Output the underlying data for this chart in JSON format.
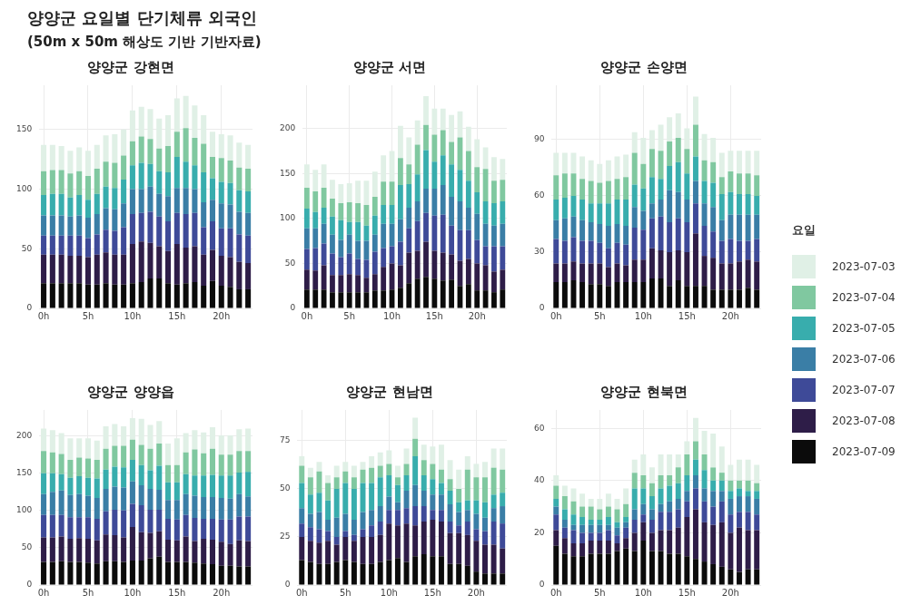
{
  "chart_data": [
    {
      "type": "bar",
      "stacked": true,
      "title": "양양군 강현면",
      "legend": "right",
      "legend_title": "요일",
      "annotations": [
        "양양군 요일별 단기체류 외국인",
        "(50m x 50m 해상도 기반 기반자료)"
      ],
      "categories": [
        "0h",
        null,
        null,
        null,
        null,
        "5h",
        null,
        null,
        null,
        null,
        "10h",
        null,
        null,
        null,
        null,
        "15h",
        null,
        null,
        null,
        null,
        "20h",
        null,
        null,
        null
      ],
      "ylim": [
        0,
        187
      ],
      "yticks": [
        0,
        50,
        100,
        150
      ],
      "grid": true,
      "series": [
        {
          "name": "2023-07-09",
          "color": "#0b0b0b",
          "values": [
            21,
            21,
            21,
            21,
            21,
            20,
            20,
            21,
            20,
            20,
            21,
            22,
            25,
            25,
            21,
            20,
            21,
            22,
            19,
            23,
            19,
            18,
            16,
            16
          ]
        },
        {
          "name": "2023-07-08",
          "color": "#2e1d48",
          "values": [
            24,
            24,
            24,
            23,
            23,
            23,
            25,
            26,
            25,
            25,
            33,
            34,
            30,
            27,
            27,
            34,
            30,
            30,
            26,
            26,
            25,
            25,
            23,
            22
          ]
        },
        {
          "name": "2023-07-07",
          "color": "#3e4a98",
          "values": [
            16,
            16,
            16,
            17,
            17,
            16,
            17,
            19,
            20,
            23,
            25,
            24,
            26,
            25,
            25,
            26,
            28,
            28,
            23,
            24,
            23,
            24,
            23,
            23
          ]
        },
        {
          "name": "2023-07-06",
          "color": "#3a7ea6",
          "values": [
            17,
            17,
            17,
            16,
            17,
            17,
            17,
            18,
            18,
            20,
            21,
            20,
            21,
            19,
            21,
            21,
            22,
            20,
            21,
            18,
            21,
            20,
            19,
            19
          ]
        },
        {
          "name": "2023-07-05",
          "color": "#38adad",
          "values": [
            17,
            18,
            18,
            16,
            17,
            15,
            17,
            18,
            18,
            20,
            20,
            22,
            19,
            19,
            20,
            26,
            22,
            20,
            25,
            18,
            18,
            18,
            18,
            18
          ]
        },
        {
          "name": "2023-07-04",
          "color": "#80c8a0",
          "values": [
            20,
            20,
            20,
            20,
            20,
            20,
            21,
            21,
            21,
            20,
            20,
            22,
            21,
            19,
            22,
            21,
            28,
            23,
            24,
            18,
            20,
            19,
            19,
            19
          ]
        },
        {
          "name": "2023-07-03",
          "color": "#e0f0e6",
          "values": [
            22,
            21,
            20,
            19,
            20,
            21,
            20,
            22,
            24,
            22,
            26,
            25,
            25,
            25,
            26,
            28,
            27,
            27,
            24,
            21,
            20,
            21,
            21,
            20
          ]
        }
      ]
    },
    {
      "type": "bar",
      "stacked": true,
      "title": "양양군 서면",
      "categories": [
        "0h",
        null,
        null,
        null,
        null,
        "5h",
        null,
        null,
        null,
        null,
        "10h",
        null,
        null,
        null,
        null,
        "15h",
        null,
        null,
        null,
        null,
        "20h",
        null,
        null,
        null
      ],
      "ylim": [
        0,
        248
      ],
      "yticks": [
        0,
        50,
        100,
        150,
        200
      ],
      "grid": true,
      "series": [
        {
          "name": "2023-07-09",
          "color": "#0b0b0b",
          "values": [
            21,
            21,
            21,
            18,
            18,
            18,
            18,
            18,
            20,
            20,
            21,
            23,
            28,
            33,
            35,
            33,
            31,
            32,
            25,
            27,
            20,
            20,
            18,
            21
          ]
        },
        {
          "name": "2023-07-08",
          "color": "#2e1d48",
          "values": [
            22,
            21,
            27,
            19,
            19,
            20,
            19,
            16,
            18,
            26,
            29,
            25,
            34,
            31,
            39,
            31,
            31,
            28,
            28,
            28,
            30,
            28,
            23,
            22
          ]
        },
        {
          "name": "2023-07-07",
          "color": "#3e4a98",
          "values": [
            23,
            25,
            24,
            24,
            20,
            23,
            18,
            20,
            25,
            21,
            19,
            26,
            27,
            33,
            32,
            39,
            42,
            32,
            34,
            32,
            26,
            21,
            28,
            26
          ]
        },
        {
          "name": "2023-07-06",
          "color": "#3a7ea6",
          "values": [
            23,
            22,
            22,
            21,
            19,
            21,
            20,
            21,
            19,
            27,
            25,
            25,
            23,
            22,
            27,
            30,
            33,
            32,
            32,
            25,
            29,
            25,
            23,
            25
          ]
        },
        {
          "name": "2023-07-05",
          "color": "#38adad",
          "values": [
            22,
            18,
            18,
            20,
            22,
            14,
            21,
            17,
            21,
            21,
            21,
            38,
            26,
            30,
            43,
            30,
            33,
            36,
            35,
            30,
            24,
            25,
            25,
            25
          ]
        },
        {
          "name": "2023-07-04",
          "color": "#80c8a0",
          "values": [
            23,
            23,
            22,
            20,
            19,
            22,
            21,
            23,
            21,
            26,
            26,
            30,
            22,
            33,
            28,
            30,
            28,
            25,
            36,
            33,
            28,
            36,
            25,
            24
          ]
        },
        {
          "name": "2023-07-03",
          "color": "#e0f0e6",
          "values": [
            26,
            24,
            26,
            21,
            21,
            21,
            25,
            27,
            28,
            29,
            34,
            36,
            30,
            27,
            32,
            29,
            24,
            30,
            29,
            27,
            31,
            24,
            26,
            23
          ]
        }
      ]
    },
    {
      "type": "bar",
      "stacked": true,
      "title": "양양군 손양면",
      "categories": [
        "0h",
        null,
        null,
        null,
        null,
        "5h",
        null,
        null,
        null,
        null,
        "10h",
        null,
        null,
        null,
        null,
        "15h",
        null,
        null,
        null,
        null,
        "20h",
        null,
        null,
        null
      ],
      "ylim": [
        0,
        119
      ],
      "yticks": [
        0,
        30,
        60,
        90
      ],
      "grid": true,
      "series": [
        {
          "name": "2023-07-09",
          "color": "#0b0b0b",
          "values": [
            14,
            14,
            15,
            14,
            13,
            13,
            12,
            14,
            14,
            14,
            14,
            16,
            16,
            12,
            15,
            12,
            12,
            12,
            10,
            10,
            10,
            10,
            11,
            10
          ]
        },
        {
          "name": "2023-07-08",
          "color": "#2e1d48",
          "values": [
            10,
            10,
            10,
            10,
            11,
            11,
            10,
            10,
            9,
            12,
            12,
            16,
            15,
            18,
            16,
            18,
            28,
            16,
            17,
            14,
            14,
            15,
            15,
            15
          ]
        },
        {
          "name": "2023-07-07",
          "color": "#3e4a98",
          "values": [
            13,
            12,
            13,
            12,
            12,
            11,
            10,
            11,
            11,
            17,
            16,
            16,
            18,
            16,
            17,
            16,
            16,
            16,
            14,
            12,
            13,
            11,
            10,
            12
          ]
        },
        {
          "name": "2023-07-06",
          "color": "#3a7ea6",
          "values": [
            10,
            12,
            11,
            11,
            10,
            10,
            12,
            10,
            10,
            11,
            10,
            8,
            9,
            17,
            14,
            12,
            12,
            12,
            13,
            11,
            13,
            14,
            14,
            13
          ]
        },
        {
          "name": "2023-07-05",
          "color": "#38adad",
          "values": [
            11,
            11,
            11,
            11,
            10,
            11,
            12,
            13,
            14,
            12,
            12,
            14,
            11,
            13,
            16,
            14,
            13,
            12,
            13,
            14,
            12,
            11,
            11,
            10
          ]
        },
        {
          "name": "2023-07-04",
          "color": "#80c8a0",
          "values": [
            13,
            13,
            12,
            11,
            12,
            11,
            12,
            11,
            12,
            17,
            13,
            15,
            15,
            13,
            13,
            13,
            17,
            11,
            11,
            9,
            11,
            11,
            11,
            11
          ]
        },
        {
          "name": "2023-07-03",
          "color": "#e0f0e6",
          "values": [
            12,
            11,
            11,
            12,
            11,
            10,
            11,
            12,
            12,
            11,
            14,
            10,
            14,
            13,
            13,
            11,
            15,
            14,
            13,
            13,
            11,
            12,
            12,
            13
          ]
        }
      ]
    },
    {
      "type": "bar",
      "stacked": true,
      "title": "양양군 양양읍",
      "categories": [
        "0h",
        null,
        null,
        null,
        null,
        "5h",
        null,
        null,
        null,
        null,
        "10h",
        null,
        null,
        null,
        null,
        "15h",
        null,
        null,
        null,
        null,
        "20h",
        null,
        null,
        null
      ],
      "ylim": [
        0,
        235
      ],
      "yticks": [
        0,
        50,
        100,
        150,
        200
      ],
      "grid": true,
      "series": [
        {
          "name": "2023-07-09",
          "color": "#0b0b0b",
          "values": [
            31,
            31,
            32,
            31,
            31,
            30,
            29,
            32,
            32,
            31,
            33,
            33,
            36,
            38,
            31,
            31,
            31,
            30,
            29,
            28,
            26,
            26,
            25,
            25
          ]
        },
        {
          "name": "2023-07-08",
          "color": "#2e1d48",
          "values": [
            33,
            33,
            33,
            31,
            32,
            32,
            31,
            36,
            35,
            33,
            45,
            38,
            34,
            34,
            30,
            29,
            34,
            29,
            33,
            33,
            32,
            29,
            35,
            34
          ]
        },
        {
          "name": "2023-07-07",
          "color": "#3e4a98",
          "values": [
            30,
            30,
            29,
            29,
            28,
            29,
            29,
            31,
            34,
            36,
            31,
            36,
            31,
            29,
            28,
            28,
            29,
            31,
            27,
            28,
            30,
            33,
            32,
            33
          ]
        },
        {
          "name": "2023-07-06",
          "color": "#3a7ea6",
          "values": [
            28,
            31,
            33,
            30,
            31,
            29,
            28,
            30,
            31,
            31,
            30,
            27,
            28,
            27,
            25,
            26,
            28,
            30,
            29,
            29,
            29,
            28,
            30,
            27
          ]
        },
        {
          "name": "2023-07-05",
          "color": "#38adad",
          "values": [
            28,
            25,
            22,
            23,
            24,
            24,
            26,
            26,
            27,
            27,
            29,
            27,
            25,
            32,
            24,
            24,
            27,
            27,
            29,
            30,
            30,
            31,
            29,
            33
          ]
        },
        {
          "name": "2023-07-04",
          "color": "#80c8a0",
          "values": [
            30,
            28,
            27,
            24,
            25,
            26,
            25,
            28,
            28,
            29,
            27,
            27,
            29,
            30,
            23,
            23,
            29,
            35,
            30,
            35,
            28,
            28,
            29,
            28
          ]
        },
        {
          "name": "2023-07-03",
          "color": "#e0f0e6",
          "values": [
            30,
            30,
            28,
            29,
            26,
            27,
            26,
            30,
            29,
            26,
            29,
            35,
            32,
            30,
            29,
            36,
            26,
            26,
            28,
            29,
            26,
            26,
            29,
            30
          ]
        }
      ]
    },
    {
      "type": "bar",
      "stacked": true,
      "title": "양양군 현남면",
      "categories": [
        "0h",
        null,
        null,
        null,
        null,
        "5h",
        null,
        null,
        null,
        null,
        "10h",
        null,
        null,
        null,
        null,
        "15h",
        null,
        null,
        null,
        null,
        "20h",
        null,
        null,
        null
      ],
      "ylim": [
        0,
        91
      ],
      "yticks": [
        0,
        25,
        50,
        75
      ],
      "grid": true,
      "series": [
        {
          "name": "2023-07-09",
          "color": "#0b0b0b",
          "values": [
            13,
            12,
            11,
            11,
            12,
            13,
            12,
            11,
            11,
            12,
            13,
            14,
            12,
            15,
            16,
            15,
            15,
            11,
            11,
            10,
            7,
            6,
            6,
            6
          ]
        },
        {
          "name": "2023-07-08",
          "color": "#2e1d48",
          "values": [
            12,
            11,
            11,
            12,
            9,
            12,
            11,
            14,
            14,
            14,
            19,
            17,
            20,
            16,
            17,
            19,
            18,
            16,
            16,
            16,
            16,
            15,
            15,
            13
          ]
        },
        {
          "name": "2023-07-07",
          "color": "#3e4a98",
          "values": [
            7,
            7,
            7,
            5,
            4,
            3,
            3,
            4,
            6,
            7,
            7,
            8,
            8,
            10,
            8,
            5,
            6,
            6,
            4,
            7,
            6,
            7,
            12,
            13
          ]
        },
        {
          "name": "2023-07-06",
          "color": "#3a7ea6",
          "values": [
            8,
            7,
            9,
            6,
            10,
            9,
            8,
            9,
            8,
            8,
            7,
            4,
            9,
            11,
            8,
            8,
            8,
            9,
            7,
            6,
            8,
            7,
            7,
            9
          ]
        },
        {
          "name": "2023-07-05",
          "color": "#38adad",
          "values": [
            13,
            10,
            10,
            10,
            15,
            16,
            16,
            15,
            14,
            15,
            11,
            9,
            8,
            15,
            8,
            8,
            6,
            7,
            5,
            5,
            7,
            8,
            7,
            7
          ]
        },
        {
          "name": "2023-07-04",
          "color": "#80c8a0",
          "values": [
            9,
            9,
            11,
            9,
            6,
            6,
            6,
            7,
            8,
            6,
            6,
            4,
            6,
            9,
            8,
            8,
            7,
            6,
            7,
            16,
            12,
            13,
            14,
            12
          ]
        },
        {
          "name": "2023-07-03",
          "color": "#e0f0e6",
          "values": [
            5,
            5,
            5,
            4,
            6,
            5,
            6,
            4,
            6,
            7,
            7,
            6,
            8,
            11,
            8,
            9,
            13,
            10,
            10,
            7,
            7,
            8,
            10,
            11
          ]
        }
      ]
    },
    {
      "type": "bar",
      "stacked": true,
      "title": "양양군 현북면",
      "categories": [
        "0h",
        null,
        null,
        null,
        null,
        "5h",
        null,
        null,
        null,
        null,
        "10h",
        null,
        null,
        null,
        null,
        "15h",
        null,
        null,
        null,
        null,
        "20h",
        null,
        null,
        null
      ],
      "ylim": [
        0,
        67
      ],
      "yticks": [
        0,
        20,
        40,
        60
      ],
      "grid": true,
      "series": [
        {
          "name": "2023-07-09",
          "color": "#0b0b0b",
          "values": [
            15,
            12,
            11,
            11,
            12,
            12,
            12,
            13,
            14,
            13,
            17,
            13,
            13,
            12,
            12,
            11,
            10,
            9,
            8,
            7,
            6,
            5,
            6,
            6
          ]
        },
        {
          "name": "2023-07-08",
          "color": "#2e1d48",
          "values": [
            6,
            6,
            5,
            5,
            5,
            5,
            5,
            3,
            4,
            7,
            7,
            7,
            8,
            9,
            10,
            15,
            19,
            15,
            15,
            17,
            14,
            17,
            15,
            15
          ]
        },
        {
          "name": "2023-07-07",
          "color": "#3e4a98",
          "values": [
            6,
            4,
            5,
            4,
            3,
            3,
            4,
            3,
            4,
            5,
            3,
            5,
            7,
            7,
            7,
            6,
            8,
            8,
            7,
            8,
            7,
            6,
            7,
            6
          ]
        },
        {
          "name": "2023-07-06",
          "color": "#3a7ea6",
          "values": [
            3,
            3,
            2,
            3,
            3,
            3,
            2,
            3,
            2,
            4,
            4,
            4,
            3,
            4,
            4,
            4,
            5,
            5,
            6,
            4,
            6,
            6,
            6,
            6
          ]
        },
        {
          "name": "2023-07-05",
          "color": "#38adad",
          "values": [
            3,
            4,
            4,
            3,
            2,
            2,
            3,
            2,
            2,
            8,
            6,
            5,
            6,
            6,
            6,
            6,
            6,
            7,
            4,
            4,
            3,
            3,
            2,
            3
          ]
        },
        {
          "name": "2023-07-04",
          "color": "#80c8a0",
          "values": [
            5,
            5,
            5,
            4,
            5,
            4,
            4,
            5,
            5,
            6,
            5,
            5,
            5,
            4,
            6,
            8,
            7,
            6,
            5,
            3,
            4,
            3,
            4,
            3
          ]
        },
        {
          "name": "2023-07-03",
          "color": "#e0f0e6",
          "values": [
            4,
            4,
            5,
            5,
            3,
            4,
            5,
            4,
            6,
            5,
            8,
            6,
            8,
            8,
            5,
            5,
            9,
            9,
            13,
            10,
            6,
            8,
            8,
            7
          ]
        }
      ]
    }
  ]
}
